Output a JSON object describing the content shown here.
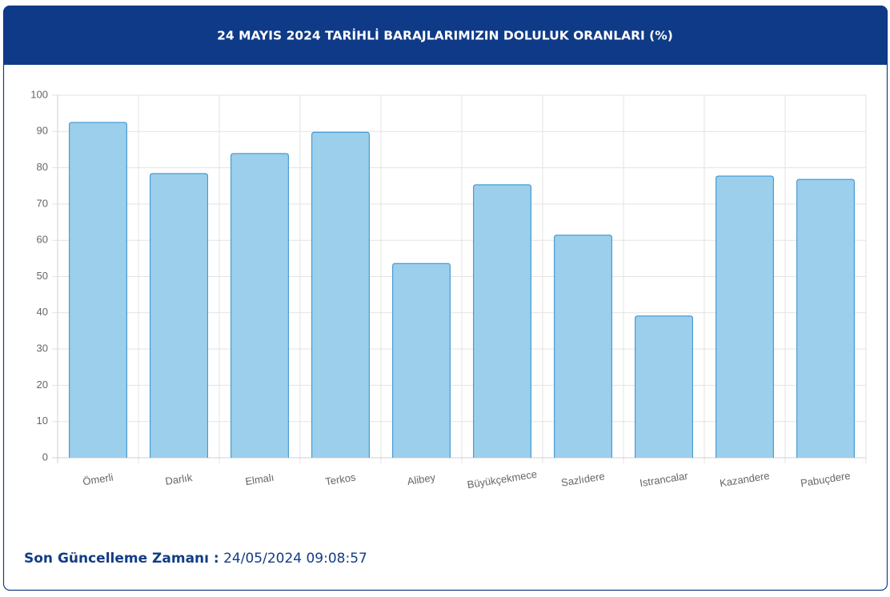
{
  "chart_data": {
    "type": "bar",
    "title": "24 MAYIS 2024 TARİHLİ BARAJLARIMIZIN DOLULUK ORANLARI (%)",
    "categories": [
      "Ömerli",
      "Darlık",
      "Elmalı",
      "Terkos",
      "Alibey",
      "Büyükçekmece",
      "Sazlıdere",
      "Istrancalar",
      "Kazandere",
      "Pabuçdere"
    ],
    "values": [
      92.5,
      78.4,
      83.9,
      89.8,
      53.6,
      75.3,
      61.4,
      39.1,
      77.7,
      76.8
    ],
    "color": "#9ccfec",
    "border_color": "#2b8ccb",
    "ylim": [
      0,
      100
    ],
    "yticks": [
      0,
      10,
      20,
      30,
      40,
      50,
      60,
      70,
      80,
      90,
      100
    ],
    "grid": true
  },
  "footer": {
    "label": "Son Güncelleme Zamanı :",
    "value": "24/05/2024 09:08:57"
  }
}
